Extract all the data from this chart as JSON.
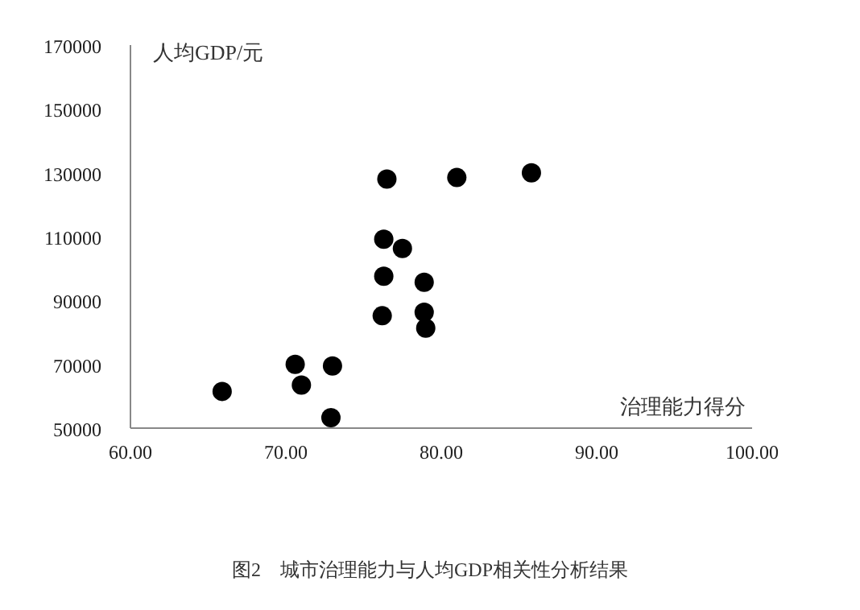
{
  "chart_data": {
    "type": "scatter",
    "xlabel": "治理能力得分",
    "ylabel": "人均GDP/元",
    "annotations": [
      "图2　城市治理能力与人均GDP相关性分析结果"
    ],
    "series": [
      {
        "color": "#000000",
        "x": [
          65.9,
          70.6,
          71.0,
          73.0,
          72.9,
          76.2,
          76.3,
          76.3,
          77.5,
          78.9,
          78.9,
          79.0,
          76.5,
          81.0,
          85.8
        ],
        "values": [
          61500,
          70000,
          63500,
          69500,
          53300,
          85200,
          97600,
          109200,
          106300,
          95700,
          86300,
          81300,
          128000,
          128500,
          130000
        ]
      }
    ],
    "xlim": [
      60,
      100
    ],
    "xticks": [
      {
        "value": 60,
        "label": "60.00"
      },
      {
        "value": 70,
        "label": "70.00"
      },
      {
        "value": 80,
        "label": "80.00"
      },
      {
        "value": 90,
        "label": "90.00"
      },
      {
        "value": 100,
        "label": "100.00"
      }
    ],
    "ylim": [
      50000,
      170000
    ],
    "yticks": [
      50000,
      70000,
      90000,
      110000,
      130000,
      150000,
      170000
    ],
    "marker": "circle",
    "grid": false
  }
}
